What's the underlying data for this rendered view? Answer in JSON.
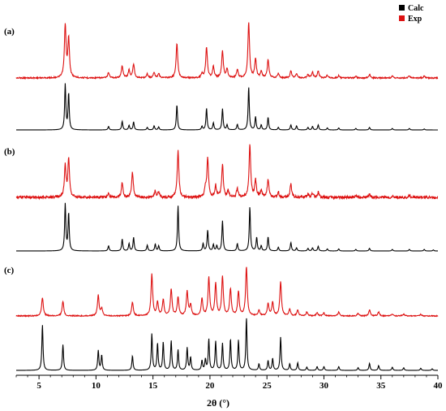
{
  "chart_data": {
    "type": "line",
    "xlabel": "2θ (°)",
    "ylabel": "",
    "xlim": [
      3,
      40
    ],
    "x_ticks": [
      "5",
      "10",
      "15",
      "20",
      "25",
      "30",
      "35",
      "40"
    ],
    "x_tick_values": [
      5,
      10,
      15,
      20,
      25,
      30,
      35,
      40
    ],
    "legend": {
      "placement": "top-right",
      "entries": [
        {
          "label": "Calc",
          "color": "#000000"
        },
        {
          "label": "Exp",
          "color": "#dd1111"
        }
      ]
    },
    "series_colors": {
      "Calc": "#000000",
      "Exp": "#dd1111"
    },
    "panels": [
      {
        "label": "(a)",
        "exp_peaks": [
          [
            7.3,
            0.95
          ],
          [
            7.6,
            0.7
          ],
          [
            11.1,
            0.1
          ],
          [
            12.3,
            0.22
          ],
          [
            12.9,
            0.14
          ],
          [
            13.3,
            0.25
          ],
          [
            14.5,
            0.07
          ],
          [
            15.1,
            0.1
          ],
          [
            15.5,
            0.08
          ],
          [
            17.1,
            0.62
          ],
          [
            19.3,
            0.08
          ],
          [
            19.7,
            0.56
          ],
          [
            20.3,
            0.2
          ],
          [
            21.1,
            0.48
          ],
          [
            21.5,
            0.16
          ],
          [
            22.4,
            0.15
          ],
          [
            23.4,
            1.0
          ],
          [
            24.0,
            0.35
          ],
          [
            24.5,
            0.12
          ],
          [
            25.1,
            0.32
          ],
          [
            26.0,
            0.08
          ],
          [
            27.1,
            0.12
          ],
          [
            27.6,
            0.08
          ],
          [
            28.6,
            0.06
          ],
          [
            29.0,
            0.1
          ],
          [
            29.5,
            0.12
          ],
          [
            30.3,
            0.05
          ],
          [
            31.3,
            0.04
          ],
          [
            32.8,
            0.03
          ],
          [
            34.0,
            0.06
          ],
          [
            36.0,
            0.03
          ],
          [
            37.5,
            0.04
          ],
          [
            38.8,
            0.03
          ]
        ],
        "calc_peaks": [
          [
            7.3,
            0.9
          ],
          [
            7.6,
            0.72
          ],
          [
            11.1,
            0.07
          ],
          [
            12.3,
            0.17
          ],
          [
            12.9,
            0.09
          ],
          [
            13.3,
            0.16
          ],
          [
            14.5,
            0.05
          ],
          [
            15.1,
            0.08
          ],
          [
            15.5,
            0.06
          ],
          [
            17.1,
            0.5
          ],
          [
            19.3,
            0.07
          ],
          [
            19.7,
            0.43
          ],
          [
            20.3,
            0.14
          ],
          [
            21.1,
            0.42
          ],
          [
            21.5,
            0.1
          ],
          [
            22.4,
            0.11
          ],
          [
            23.4,
            0.85
          ],
          [
            24.0,
            0.26
          ],
          [
            24.5,
            0.1
          ],
          [
            25.1,
            0.25
          ],
          [
            26.0,
            0.05
          ],
          [
            27.1,
            0.1
          ],
          [
            27.6,
            0.08
          ],
          [
            28.6,
            0.05
          ],
          [
            29.0,
            0.07
          ],
          [
            29.5,
            0.1
          ],
          [
            30.3,
            0.04
          ],
          [
            31.3,
            0.04
          ],
          [
            32.8,
            0.03
          ],
          [
            34.0,
            0.05
          ],
          [
            36.0,
            0.03
          ],
          [
            37.5,
            0.03
          ],
          [
            38.8,
            0.02
          ]
        ]
      },
      {
        "label": "(b)",
        "exp_peaks": [
          [
            7.3,
            0.6
          ],
          [
            7.6,
            0.72
          ],
          [
            11.1,
            0.08
          ],
          [
            12.3,
            0.28
          ],
          [
            13.2,
            0.48
          ],
          [
            15.2,
            0.12
          ],
          [
            15.5,
            0.1
          ],
          [
            17.2,
            0.9
          ],
          [
            19.6,
            0.15
          ],
          [
            19.8,
            0.75
          ],
          [
            20.5,
            0.22
          ],
          [
            21.1,
            0.62
          ],
          [
            21.6,
            0.12
          ],
          [
            22.4,
            0.16
          ],
          [
            23.5,
            1.0
          ],
          [
            24.0,
            0.32
          ],
          [
            24.5,
            0.12
          ],
          [
            25.1,
            0.35
          ],
          [
            26.0,
            0.1
          ],
          [
            27.1,
            0.25
          ],
          [
            28.6,
            0.06
          ],
          [
            29.0,
            0.08
          ],
          [
            29.5,
            0.1
          ],
          [
            32.8,
            0.04
          ],
          [
            34.0,
            0.06
          ],
          [
            36.0,
            0.03
          ],
          [
            37.5,
            0.04
          ]
        ],
        "calc_peaks": [
          [
            7.3,
            0.9
          ],
          [
            7.6,
            0.72
          ],
          [
            11.1,
            0.1
          ],
          [
            12.3,
            0.23
          ],
          [
            12.9,
            0.14
          ],
          [
            13.3,
            0.26
          ],
          [
            14.5,
            0.11
          ],
          [
            15.2,
            0.13
          ],
          [
            15.5,
            0.1
          ],
          [
            17.2,
            0.87
          ],
          [
            19.4,
            0.14
          ],
          [
            19.8,
            0.4
          ],
          [
            20.3,
            0.12
          ],
          [
            20.6,
            0.1
          ],
          [
            21.1,
            0.58
          ],
          [
            22.4,
            0.14
          ],
          [
            23.5,
            0.85
          ],
          [
            24.1,
            0.26
          ],
          [
            24.5,
            0.1
          ],
          [
            25.1,
            0.27
          ],
          [
            26.0,
            0.07
          ],
          [
            27.1,
            0.16
          ],
          [
            27.6,
            0.06
          ],
          [
            28.6,
            0.05
          ],
          [
            29.0,
            0.06
          ],
          [
            29.5,
            0.09
          ],
          [
            30.3,
            0.04
          ],
          [
            31.3,
            0.04
          ],
          [
            32.8,
            0.03
          ],
          [
            34.0,
            0.05
          ],
          [
            36.0,
            0.03
          ],
          [
            37.5,
            0.03
          ],
          [
            38.8,
            0.03
          ],
          [
            39.6,
            0.02
          ]
        ]
      },
      {
        "label": "(c)",
        "exp_peaks": [
          [
            5.3,
            0.38
          ],
          [
            7.1,
            0.3
          ],
          [
            10.2,
            0.42
          ],
          [
            10.5,
            0.15
          ],
          [
            13.2,
            0.28
          ],
          [
            14.9,
            0.85
          ],
          [
            15.4,
            0.28
          ],
          [
            15.9,
            0.33
          ],
          [
            16.6,
            0.55
          ],
          [
            17.2,
            0.38
          ],
          [
            18.0,
            0.5
          ],
          [
            18.3,
            0.22
          ],
          [
            19.3,
            0.35
          ],
          [
            19.9,
            0.78
          ],
          [
            20.5,
            0.65
          ],
          [
            21.1,
            0.8
          ],
          [
            21.8,
            0.55
          ],
          [
            22.5,
            0.5
          ],
          [
            23.2,
            1.0
          ],
          [
            24.3,
            0.12
          ],
          [
            25.1,
            0.25
          ],
          [
            25.5,
            0.28
          ],
          [
            26.2,
            0.7
          ],
          [
            27.0,
            0.14
          ],
          [
            27.7,
            0.12
          ],
          [
            28.5,
            0.08
          ],
          [
            29.4,
            0.07
          ],
          [
            30.0,
            0.06
          ],
          [
            31.3,
            0.08
          ],
          [
            33.0,
            0.05
          ],
          [
            34.0,
            0.12
          ],
          [
            34.8,
            0.08
          ],
          [
            36.0,
            0.04
          ],
          [
            37.0,
            0.04
          ],
          [
            38.5,
            0.03
          ]
        ],
        "calc_peaks": [
          [
            5.3,
            0.85
          ],
          [
            7.1,
            0.48
          ],
          [
            10.2,
            0.37
          ],
          [
            10.5,
            0.28
          ],
          [
            13.2,
            0.27
          ],
          [
            14.9,
            0.68
          ],
          [
            15.4,
            0.5
          ],
          [
            15.9,
            0.52
          ],
          [
            16.6,
            0.55
          ],
          [
            17.2,
            0.38
          ],
          [
            18.0,
            0.42
          ],
          [
            18.3,
            0.24
          ],
          [
            19.3,
            0.18
          ],
          [
            19.6,
            0.2
          ],
          [
            19.9,
            0.58
          ],
          [
            20.5,
            0.54
          ],
          [
            21.1,
            0.5
          ],
          [
            21.8,
            0.58
          ],
          [
            22.5,
            0.56
          ],
          [
            23.2,
            0.98
          ],
          [
            24.3,
            0.12
          ],
          [
            25.1,
            0.18
          ],
          [
            25.5,
            0.22
          ],
          [
            26.2,
            0.62
          ],
          [
            27.0,
            0.12
          ],
          [
            27.7,
            0.14
          ],
          [
            28.5,
            0.06
          ],
          [
            29.4,
            0.07
          ],
          [
            30.0,
            0.07
          ],
          [
            31.3,
            0.07
          ],
          [
            33.0,
            0.05
          ],
          [
            34.0,
            0.13
          ],
          [
            34.8,
            0.09
          ],
          [
            36.0,
            0.06
          ],
          [
            37.0,
            0.05
          ],
          [
            38.5,
            0.04
          ],
          [
            39.5,
            0.03
          ]
        ]
      }
    ]
  }
}
